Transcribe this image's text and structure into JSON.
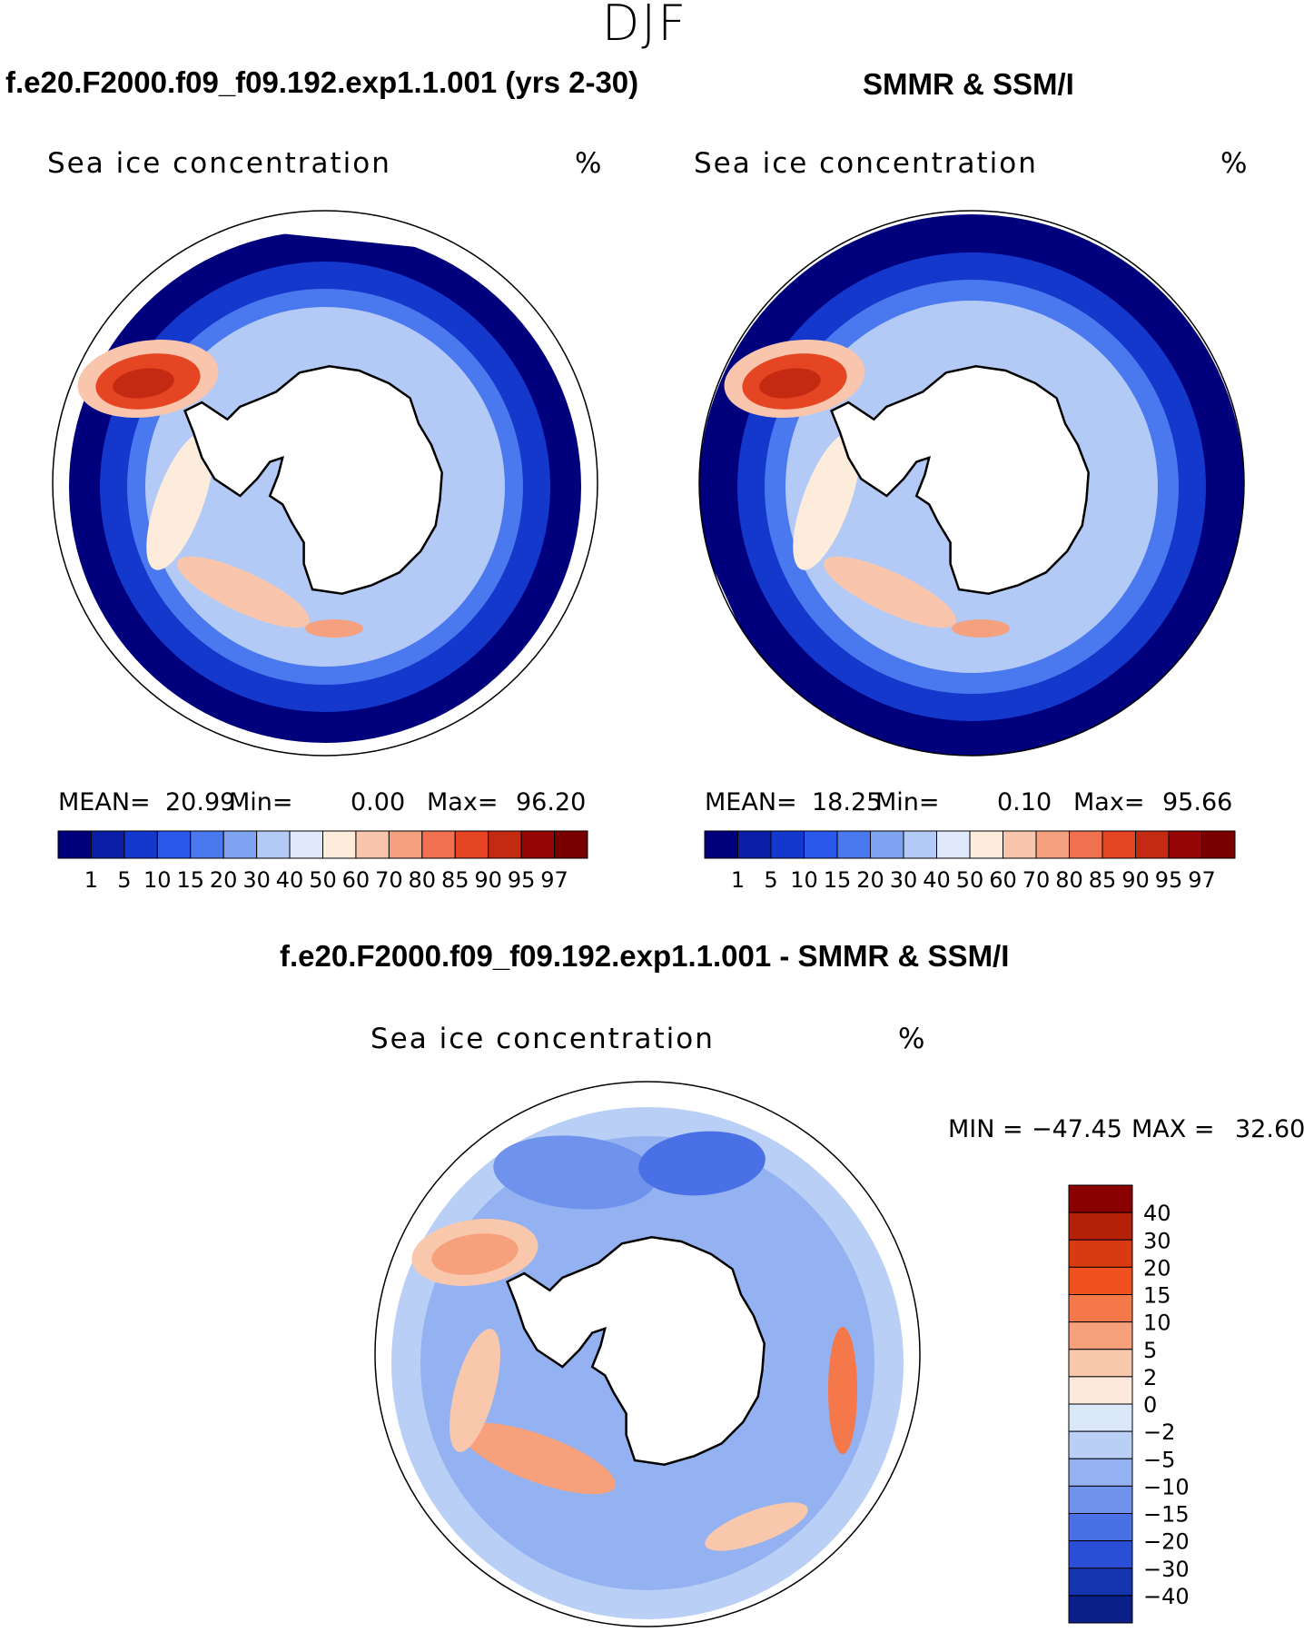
{
  "figure": {
    "title": "DJF"
  },
  "panels": [
    {
      "title": "f.e20.F2000.f09_f09.192.exp1.1.001 (yrs 2-30)",
      "field": "Sea ice concentration",
      "unit": "%",
      "stats": {
        "mean_label": "MEAN=",
        "mean": "20.99",
        "min_label": "Min=",
        "min": "0.00",
        "max_label": "Max=",
        "max": "96.20"
      }
    },
    {
      "title": "SMMR & SSM/I",
      "field": "Sea ice concentration",
      "unit": "%",
      "stats": {
        "mean_label": "MEAN=",
        "mean": "18.25",
        "min_label": "Min=",
        "min": "0.10",
        "max_label": "Max=",
        "max": "95.66"
      }
    },
    {
      "title": "f.e20.F2000.f09_f09.192.exp1.1.001 - SMMR & SSM/I",
      "field": "Sea ice concentration",
      "unit": "%",
      "stats": {
        "min_label": "MIN =",
        "min": "−47.45",
        "max_label": "MAX =",
        "max": "32.60"
      }
    }
  ],
  "chart_data": [
    {
      "type": "heatmap",
      "title": "f.e20.F2000.f09_f09.192.exp1.1.001 (yrs 2-30)",
      "variable": "Sea ice concentration",
      "unit": "%",
      "season": "DJF",
      "projection": "south-polar-stereographic",
      "mean": 20.99,
      "min": 0.0,
      "max": 96.2,
      "colorbar": {
        "orientation": "horizontal",
        "levels": [
          "1",
          "5",
          "10",
          "15",
          "20",
          "30",
          "40",
          "50",
          "60",
          "70",
          "80",
          "85",
          "90",
          "95",
          "97"
        ],
        "colors": [
          "#00007d",
          "#0b1fa6",
          "#1437cc",
          "#2a58ea",
          "#4a78ee",
          "#7fa2f1",
          "#b3c9f6",
          "#dfe9fb",
          "#fdebdc",
          "#f9c6ad",
          "#f5a07f",
          "#f07050",
          "#e54522",
          "#c42a12",
          "#950606",
          "#7a0000"
        ]
      }
    },
    {
      "type": "heatmap",
      "title": "SMMR & SSM/I",
      "variable": "Sea ice concentration",
      "unit": "%",
      "season": "DJF",
      "projection": "south-polar-stereographic",
      "mean": 18.25,
      "min": 0.1,
      "max": 95.66,
      "colorbar": {
        "orientation": "horizontal",
        "levels": [
          "1",
          "5",
          "10",
          "15",
          "20",
          "30",
          "40",
          "50",
          "60",
          "70",
          "80",
          "85",
          "90",
          "95",
          "97"
        ],
        "colors": [
          "#00007d",
          "#0b1fa6",
          "#1437cc",
          "#2a58ea",
          "#4a78ee",
          "#7fa2f1",
          "#b3c9f6",
          "#dfe9fb",
          "#fdebdc",
          "#f9c6ad",
          "#f5a07f",
          "#f07050",
          "#e54522",
          "#c42a12",
          "#950606",
          "#7a0000"
        ]
      }
    },
    {
      "type": "heatmap",
      "title": "f.e20.F2000.f09_f09.192.exp1.1.001 - SMMR & SSM/I",
      "variable": "Sea ice concentration",
      "unit": "%",
      "season": "DJF",
      "projection": "south-polar-stereographic",
      "min": -47.45,
      "max": 32.6,
      "colorbar": {
        "orientation": "vertical",
        "levels": [
          "40",
          "30",
          "20",
          "15",
          "10",
          "5",
          "2",
          "0",
          "−2",
          "−5",
          "−10",
          "−15",
          "−20",
          "−30",
          "−40"
        ],
        "colors": [
          "#8b0000",
          "#b52008",
          "#d93a12",
          "#f0501e",
          "#f5784a",
          "#f7a07c",
          "#f9c8ac",
          "#fde9dc",
          "#dbe8fa",
          "#b9cff5",
          "#94b2f1",
          "#6f92ec",
          "#4a70e6",
          "#2a4fd6",
          "#1534b0",
          "#0b1f88"
        ]
      }
    }
  ]
}
